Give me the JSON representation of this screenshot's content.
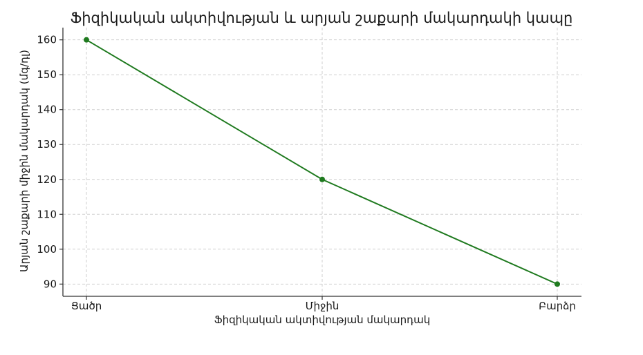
{
  "chart_data": {
    "type": "line",
    "title": "Ֆիզիկական ակտիվության և արյան շաքարի մակարդակի կապը",
    "xlabel": "Ֆիզիկական ակտիվության մակարդակ",
    "ylabel": "Արյան շաքարի միջին մակարդակ (մգ/դլ)",
    "categories": [
      "Ցածր",
      "Միջին",
      "Բարձր"
    ],
    "series": [
      {
        "values": [
          160,
          120,
          90
        ],
        "color": "#1f7a1f",
        "marker": "circle"
      }
    ],
    "yticks": [
      90,
      100,
      110,
      120,
      130,
      140,
      150,
      160
    ],
    "ylim": [
      86.5,
      163.5
    ],
    "grid": true,
    "legend": "none"
  }
}
